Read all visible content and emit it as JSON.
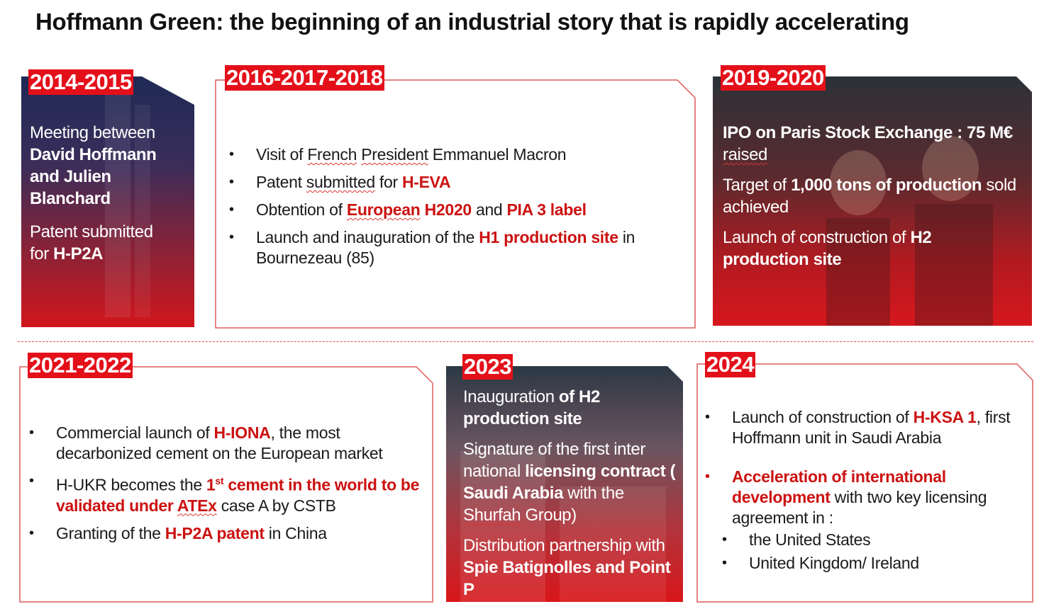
{
  "title": "Hoffmann Green: the beginning of an industrial story that is rapidly accelerating",
  "colors": {
    "accent": "#e3101a",
    "text_red": "#cc1111",
    "frame": "#e05a5a"
  },
  "p2014": {
    "label": "2014-2015",
    "l1": "Meeting between",
    "l2": "David Hoffmann",
    "l3": "and Julien",
    "l4": "Blanchard",
    "l5": "Patent submitted",
    "l6a": "for ",
    "l6b": "H-P2A"
  },
  "p2016": {
    "label": "2016-2017-2018",
    "b1a": "Visit of ",
    "b1b": "French",
    "b1c": " ",
    "b1d": "President",
    "b1e": " Emmanuel Macron",
    "b2a": "Patent ",
    "b2b": "submitted",
    "b2c": " for ",
    "b2d": "H-EVA",
    "b3a": "Obtention of ",
    "b3b": "European",
    "b3c": " H2020",
    "b3d": " and ",
    "b3e": "PIA 3 label",
    "b4a": "Launch and inauguration of the ",
    "b4b": "H1 production site",
    "b4c": " in Bournezeau (85)"
  },
  "p2019": {
    "label": "2019-2020",
    "a1": "IPO on Paris Stock Exchange : 75 M€ ",
    "a2": "raised",
    "b1": "Target of ",
    "b2": "1,000 tons of production",
    "b3": " sold achieved",
    "c1": "Launch of construction of ",
    "c2": "H2 production site"
  },
  "p2021": {
    "label": "2021-2022",
    "b1a": "Commercial launch of ",
    "b1b": "H-IONA",
    "b1c": ", the most decarbonized cement on the European market",
    "b2a": "H-UKR becomes the ",
    "b2b": "1",
    "b2c": "st",
    "b2d": " cement in the world to be validated under ",
    "b2e": "ATEx",
    "b2f": " case A by CSTB",
    "b3a": " Granting of the ",
    "b3b": "H-P2A patent",
    "b3c": " in China"
  },
  "p2023": {
    "label": "2023",
    "a1": "Inauguration ",
    "a2": "of H2 production site",
    "b1": "Signature of the first inter national ",
    "b2": "licensing contract",
    "b3": " ( Saudi Arabia",
    "b4": " with the ",
    "b5": "Shurfah",
    "b6": " Group)",
    "c1": "Distribution partnership ",
    "c2": "with",
    "c3": " Spie Batignolles and Point P"
  },
  "p2024": {
    "label": "2024",
    "b1a": "Launch of construction of ",
    "b1b": "H-KSA 1",
    "b1c": ", first Hoffmann unit in Saudi Arabia",
    "b2a": "Acceleration of international development",
    "b2b": " with two key licensing agreement in :",
    "s1": "the United States",
    "s2": "United Kingdom/ Ireland"
  }
}
